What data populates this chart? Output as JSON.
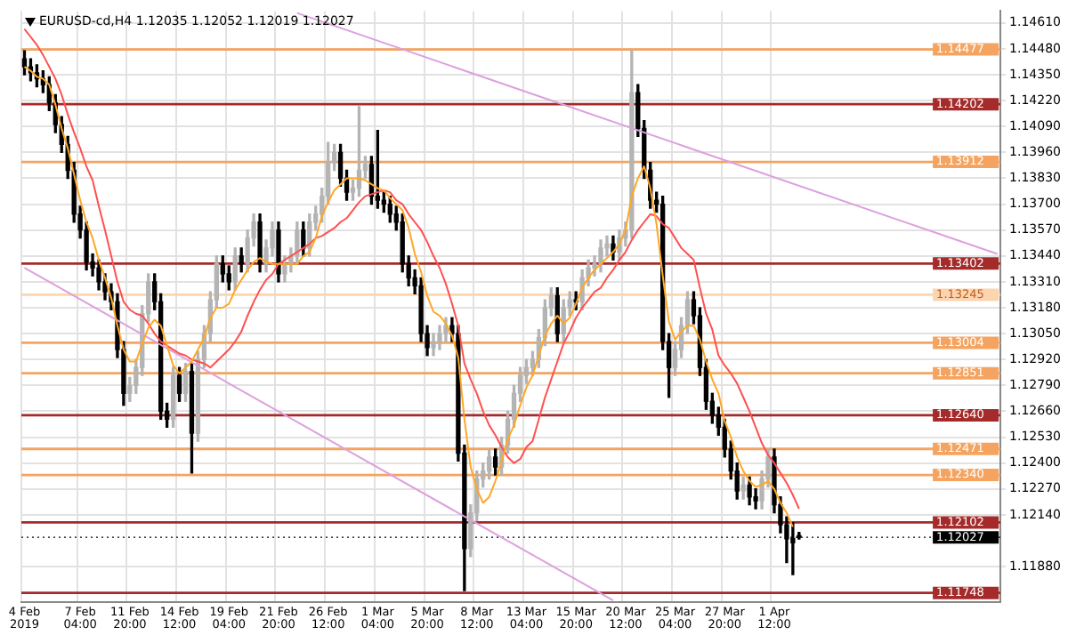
{
  "chart_data": {
    "type": "candlestick",
    "title": "EURUSD-cd,H4 1.12035 1.12052 1.12019 1.12027",
    "categories": [
      "4 Feb 2019",
      null,
      null,
      null,
      null,
      null,
      null,
      null,
      null,
      "7 Feb 04:00",
      null,
      null,
      null,
      null,
      null,
      null,
      null,
      "11 Feb 20:00",
      null,
      null,
      null,
      null,
      null,
      null,
      null,
      "14 Feb 12:00",
      null,
      null,
      null,
      null,
      null,
      null,
      null,
      "19 Feb 04:00",
      null,
      null,
      null,
      null,
      null,
      null,
      null,
      "21 Feb 20:00",
      null,
      null,
      null,
      null,
      null,
      null,
      null,
      "26 Feb 12:00",
      null,
      null,
      null,
      null,
      null,
      null,
      null,
      "1 Mar 04:00",
      null,
      null,
      null,
      null,
      null,
      null,
      null,
      "5 Mar 20:00",
      null,
      null,
      null,
      null,
      null,
      null,
      null,
      "8 Mar 12:00",
      null,
      null,
      null,
      null,
      null,
      null,
      null,
      "13 Mar 04:00",
      null,
      null,
      null,
      null,
      null,
      null,
      null,
      "15 Mar 20:00",
      null,
      null,
      null,
      null,
      null,
      null,
      null,
      "20 Mar 12:00",
      null,
      null,
      null,
      null,
      null,
      null,
      null,
      "25 Mar 04:00",
      null,
      null,
      null,
      null,
      null,
      null,
      null,
      "27 Mar 20:00",
      null,
      null,
      null,
      null,
      null,
      null,
      null,
      "1 Apr 12:00",
      null,
      null,
      null,
      null,
      null,
      null,
      null,
      null,
      null,
      null,
      null,
      null,
      null,
      null,
      null,
      null,
      null,
      null,
      null,
      null,
      null,
      null,
      null,
      null,
      null,
      null,
      null,
      null,
      null,
      null,
      null,
      null,
      null,
      null,
      null,
      null
    ],
    "ohlc": [
      [
        1.1443,
        1.1447,
        1.1435,
        1.1439
      ],
      [
        1.1439,
        1.1443,
        1.1432,
        1.1436
      ],
      [
        1.1436,
        1.144,
        1.1429,
        1.1433
      ],
      [
        1.1433,
        1.1437,
        1.1426,
        1.143
      ],
      [
        1.143,
        1.1434,
        1.1417,
        1.1421
      ],
      [
        1.1421,
        1.1425,
        1.1406,
        1.141
      ],
      [
        1.141,
        1.1414,
        1.1396,
        1.14
      ],
      [
        1.14,
        1.1404,
        1.1383,
        1.1387
      ],
      [
        1.1387,
        1.1391,
        1.1361,
        1.1365
      ],
      [
        1.1365,
        1.1369,
        1.1353,
        1.1357
      ],
      [
        1.1357,
        1.1361,
        1.1337,
        1.1341
      ],
      [
        1.1341,
        1.1345,
        1.1334,
        1.1338
      ],
      [
        1.1338,
        1.1342,
        1.1327,
        1.1331
      ],
      [
        1.1331,
        1.1335,
        1.1322,
        1.1326
      ],
      [
        1.1326,
        1.133,
        1.1317,
        1.1321
      ],
      [
        1.1321,
        1.1325,
        1.1293,
        1.1297
      ],
      [
        1.1297,
        1.1301,
        1.1269,
        1.1275
      ],
      [
        1.1275,
        1.1283,
        1.1271,
        1.1279
      ],
      [
        1.1279,
        1.1292,
        1.1275,
        1.1288
      ],
      [
        1.1288,
        1.1319,
        1.1284,
        1.1315
      ],
      [
        1.1315,
        1.1335,
        1.1311,
        1.1331
      ],
      [
        1.1331,
        1.1335,
        1.1317,
        1.1321
      ],
      [
        1.1321,
        1.1325,
        1.1262,
        1.1266
      ],
      [
        1.1266,
        1.127,
        1.1258,
        1.1262
      ],
      [
        1.1262,
        1.1288,
        1.1258,
        1.1284
      ],
      [
        1.1284,
        1.1288,
        1.1271,
        1.1275
      ],
      [
        1.1275,
        1.129,
        1.1271,
        1.1286
      ],
      [
        1.1286,
        1.129,
        1.1235,
        1.1255
      ],
      [
        1.1255,
        1.1296,
        1.1251,
        1.1292
      ],
      [
        1.1292,
        1.1309,
        1.1288,
        1.1305
      ],
      [
        1.1305,
        1.1326,
        1.1301,
        1.1322
      ],
      [
        1.1322,
        1.1344,
        1.1318,
        1.134
      ],
      [
        1.134,
        1.1344,
        1.1331,
        1.1335
      ],
      [
        1.1335,
        1.1339,
        1.1327,
        1.1331
      ],
      [
        1.1331,
        1.1348,
        1.1327,
        1.1344
      ],
      [
        1.1344,
        1.1348,
        1.1336,
        1.134
      ],
      [
        1.134,
        1.1357,
        1.1336,
        1.1353
      ],
      [
        1.1353,
        1.1365,
        1.1349,
        1.1361
      ],
      [
        1.1361,
        1.1365,
        1.1336,
        1.134
      ],
      [
        1.134,
        1.1352,
        1.1336,
        1.1348
      ],
      [
        1.1348,
        1.1361,
        1.1344,
        1.1357
      ],
      [
        1.1357,
        1.1361,
        1.1331,
        1.1335
      ],
      [
        1.1335,
        1.1344,
        1.1331,
        1.134
      ],
      [
        1.134,
        1.1348,
        1.1336,
        1.1344
      ],
      [
        1.1344,
        1.1361,
        1.134,
        1.1357
      ],
      [
        1.1357,
        1.1361,
        1.1344,
        1.1348
      ],
      [
        1.1348,
        1.1365,
        1.1344,
        1.1361
      ],
      [
        1.1361,
        1.1369,
        1.1357,
        1.1365
      ],
      [
        1.1365,
        1.1378,
        1.1361,
        1.1374
      ],
      [
        1.1374,
        1.1401,
        1.137,
        1.1391
      ],
      [
        1.1391,
        1.14,
        1.1387,
        1.1396
      ],
      [
        1.1396,
        1.14,
        1.1379,
        1.1383
      ],
      [
        1.1383,
        1.1387,
        1.1372,
        1.1376
      ],
      [
        1.1376,
        1.1382,
        1.1372,
        1.1378
      ],
      [
        1.1378,
        1.1419,
        1.1374,
        1.1387
      ],
      [
        1.1387,
        1.1394,
        1.1383,
        1.139
      ],
      [
        1.139,
        1.1394,
        1.137,
        1.1374
      ],
      [
        1.1374,
        1.1407,
        1.1368,
        1.1372
      ],
      [
        1.1372,
        1.1376,
        1.1366,
        1.137
      ],
      [
        1.137,
        1.1374,
        1.1361,
        1.1365
      ],
      [
        1.1365,
        1.1369,
        1.1357,
        1.1361
      ],
      [
        1.1361,
        1.1365,
        1.1336,
        1.134
      ],
      [
        1.134,
        1.1344,
        1.1329,
        1.1333
      ],
      [
        1.1333,
        1.1337,
        1.1325,
        1.1329
      ],
      [
        1.1329,
        1.1333,
        1.1301,
        1.1305
      ],
      [
        1.1305,
        1.1309,
        1.1294,
        1.1298
      ],
      [
        1.1298,
        1.1305,
        1.1294,
        1.1301
      ],
      [
        1.1301,
        1.1309,
        1.1297,
        1.1305
      ],
      [
        1.1305,
        1.1313,
        1.1301,
        1.1309
      ],
      [
        1.1309,
        1.1313,
        1.1301,
        1.1305
      ],
      [
        1.1305,
        1.1309,
        1.1241,
        1.1245
      ],
      [
        1.1245,
        1.1249,
        1.1176,
        1.1197
      ],
      [
        1.1197,
        1.1219,
        1.1193,
        1.1215
      ],
      [
        1.1215,
        1.1236,
        1.1211,
        1.1232
      ],
      [
        1.1232,
        1.124,
        1.1228,
        1.1236
      ],
      [
        1.1236,
        1.1247,
        1.1232,
        1.1243
      ],
      [
        1.1243,
        1.1247,
        1.1234,
        1.1238
      ],
      [
        1.1238,
        1.1253,
        1.1234,
        1.1249
      ],
      [
        1.1249,
        1.1266,
        1.1245,
        1.1262
      ],
      [
        1.1262,
        1.1279,
        1.1258,
        1.1275
      ],
      [
        1.1275,
        1.1288,
        1.1271,
        1.1284
      ],
      [
        1.1284,
        1.1292,
        1.128,
        1.1288
      ],
      [
        1.1288,
        1.1296,
        1.1284,
        1.1292
      ],
      [
        1.1292,
        1.1307,
        1.1288,
        1.1303
      ],
      [
        1.1303,
        1.1322,
        1.1299,
        1.1318
      ],
      [
        1.1318,
        1.1328,
        1.1314,
        1.1324
      ],
      [
        1.1324,
        1.1328,
        1.1301,
        1.1305
      ],
      [
        1.1305,
        1.1322,
        1.1301,
        1.1318
      ],
      [
        1.1318,
        1.1326,
        1.1314,
        1.1322
      ],
      [
        1.1322,
        1.1326,
        1.1317,
        1.1321
      ],
      [
        1.1321,
        1.1337,
        1.1317,
        1.1333
      ],
      [
        1.1333,
        1.1342,
        1.1329,
        1.1338
      ],
      [
        1.1338,
        1.1344,
        1.1334,
        1.134
      ],
      [
        1.134,
        1.1352,
        1.1336,
        1.1348
      ],
      [
        1.1348,
        1.1354,
        1.1344,
        1.135
      ],
      [
        1.135,
        1.1354,
        1.1342,
        1.1346
      ],
      [
        1.1346,
        1.1357,
        1.1342,
        1.1353
      ],
      [
        1.1353,
        1.1361,
        1.1349,
        1.1357
      ],
      [
        1.1357,
        1.1447,
        1.1353,
        1.1426
      ],
      [
        1.1426,
        1.143,
        1.1404,
        1.1408
      ],
      [
        1.1408,
        1.1412,
        1.1383,
        1.1387
      ],
      [
        1.1387,
        1.1391,
        1.1368,
        1.1372
      ],
      [
        1.1372,
        1.1376,
        1.1366,
        1.137
      ],
      [
        1.137,
        1.1374,
        1.1297,
        1.1301
      ],
      [
        1.1301,
        1.1305,
        1.1273,
        1.1288
      ],
      [
        1.1288,
        1.1301,
        1.1284,
        1.1297
      ],
      [
        1.1297,
        1.1313,
        1.1293,
        1.1309
      ],
      [
        1.1309,
        1.1326,
        1.1305,
        1.1322
      ],
      [
        1.1322,
        1.1326,
        1.131,
        1.1314
      ],
      [
        1.1314,
        1.1318,
        1.1284,
        1.1288
      ],
      [
        1.1288,
        1.1292,
        1.1267,
        1.1271
      ],
      [
        1.1271,
        1.1275,
        1.126,
        1.1264
      ],
      [
        1.1264,
        1.1268,
        1.1254,
        1.1258
      ],
      [
        1.1258,
        1.1262,
        1.1243,
        1.1247
      ],
      [
        1.1247,
        1.1251,
        1.1232,
        1.1236
      ],
      [
        1.1236,
        1.124,
        1.1222,
        1.1226
      ],
      [
        1.1226,
        1.1233,
        1.1222,
        1.1229
      ],
      [
        1.1229,
        1.1233,
        1.1219,
        1.1223
      ],
      [
        1.1223,
        1.1227,
        1.1217,
        1.1221
      ],
      [
        1.1221,
        1.1236,
        1.1217,
        1.1232
      ],
      [
        1.1232,
        1.1247,
        1.1228,
        1.1243
      ],
      [
        1.1243,
        1.1247,
        1.1215,
        1.1219
      ],
      [
        1.1219,
        1.1223,
        1.1205,
        1.1209
      ],
      [
        1.1209,
        1.1213,
        1.119,
        1.1202
      ],
      [
        1.1202,
        1.121,
        1.1184,
        1.12
      ],
      [
        1.12035,
        1.12052,
        1.12019,
        1.12027
      ],
      null,
      null,
      null,
      null,
      null,
      null,
      null,
      null,
      null,
      null,
      null,
      null,
      null,
      null,
      null,
      null,
      null,
      null,
      null,
      null,
      null,
      null,
      null,
      null,
      null,
      null,
      null,
      null,
      null,
      null,
      null,
      null
    ],
    "series": [
      {
        "type": "line",
        "color": "#ffa726",
        "values": [
          1.1439,
          1.1437,
          1.1434,
          1.1433,
          1.143,
          1.142,
          1.1408,
          1.1398,
          1.1385,
          1.1372,
          1.1361,
          1.1353,
          1.1342,
          1.1333,
          1.1323,
          1.1309,
          1.1297,
          1.1291,
          1.1291,
          1.13,
          1.1308,
          1.1312,
          1.1309,
          1.1299,
          1.1289,
          1.1285,
          1.1288,
          1.1291,
          1.1297,
          1.1303,
          1.1313,
          1.1318,
          1.1318,
          1.132,
          1.1327,
          1.1332,
          1.1337,
          1.1341,
          1.1343,
          1.1341,
          1.134,
          1.134,
          1.134,
          1.134,
          1.134,
          1.1344,
          1.1346,
          1.1353,
          1.1364,
          1.1371,
          1.1377,
          1.138,
          1.1383,
          1.1383,
          1.1383,
          1.1382,
          1.138,
          1.1378,
          1.1377,
          1.1373,
          1.137,
          1.1367,
          1.1358,
          1.1345,
          1.1336,
          1.1324,
          1.1316,
          1.1314,
          1.131,
          1.1304,
          1.1293,
          1.1262,
          1.1238,
          1.1227,
          1.122,
          1.1223,
          1.1231,
          1.1241,
          1.1252,
          1.1259,
          1.1269,
          1.1278,
          1.1284,
          1.1294,
          1.1304,
          1.131,
          1.1314,
          1.131,
          1.1313,
          1.132,
          1.1328,
          1.1333,
          1.1337,
          1.134,
          1.1343,
          1.1346,
          1.135,
          1.1357,
          1.1374,
          1.1383,
          1.1389,
          1.1378,
          1.136,
          1.1334,
          1.1311,
          1.1302,
          1.1306,
          1.1309,
          1.1309,
          1.1302,
          1.1291,
          1.1282,
          1.1275,
          1.1261,
          1.1253,
          1.1243,
          1.1236,
          1.1231,
          1.1228,
          1.1229,
          1.1231,
          1.1227,
          1.122,
          1.1215,
          1.1208,
          null,
          null,
          null,
          null,
          null,
          null,
          null,
          null,
          null,
          null,
          null,
          null,
          null,
          null,
          null,
          null,
          null,
          null,
          null,
          null,
          null,
          null,
          null,
          null,
          null,
          null,
          null,
          null,
          null,
          null,
          null,
          null,
          null
        ]
      },
      {
        "type": "line",
        "color": "#ff5050",
        "values": [
          1.1458,
          1.1454,
          1.145,
          1.1445,
          1.1439,
          1.1433,
          1.1425,
          1.1415,
          1.1406,
          1.1398,
          1.1389,
          1.1382,
          1.1369,
          1.1357,
          1.1344,
          1.1331,
          1.1321,
          1.1317,
          1.1315,
          1.1314,
          1.131,
          1.1305,
          1.1301,
          1.1299,
          1.1297,
          1.1295,
          1.1294,
          1.1292,
          1.1291,
          1.129,
          1.1288,
          1.1291,
          1.1294,
          1.1297,
          1.1301,
          1.1306,
          1.1314,
          1.1321,
          1.1327,
          1.1332,
          1.1335,
          1.134,
          1.1342,
          1.1344,
          1.1346,
          1.1348,
          1.135,
          1.1353,
          1.1354,
          1.1356,
          1.1358,
          1.1361,
          1.1363,
          1.1367,
          1.1371,
          1.1374,
          1.1375,
          1.1376,
          1.1377,
          1.1376,
          1.1372,
          1.137,
          1.1365,
          1.1361,
          1.1357,
          1.1351,
          1.1344,
          1.1338,
          1.133,
          1.132,
          1.1309,
          1.129,
          1.1282,
          1.1275,
          1.1266,
          1.1259,
          1.1254,
          1.1248,
          1.1243,
          1.124,
          1.1242,
          1.1248,
          1.1251,
          1.1262,
          1.1273,
          1.1282,
          1.1291,
          1.13,
          1.1306,
          1.1313,
          1.1318,
          1.1322,
          1.1326,
          1.1328,
          1.1333,
          1.1337,
          1.1342,
          1.1346,
          1.1352,
          1.1357,
          1.1361,
          1.1365,
          1.1364,
          1.136,
          1.1358,
          1.1353,
          1.1348,
          1.1345,
          1.1342,
          1.1328,
          1.1315,
          1.1307,
          1.1294,
          1.1289,
          1.1285,
          1.128,
          1.1273,
          1.1266,
          1.1258,
          1.125,
          1.1244,
          1.124,
          1.1235,
          1.123,
          1.1224,
          1.1217,
          null,
          null,
          null,
          null,
          null,
          null,
          null,
          null,
          null,
          null,
          null,
          null,
          null,
          null,
          null,
          null,
          null,
          null,
          null,
          null,
          null,
          null,
          null,
          null,
          null,
          null,
          null,
          null,
          null,
          null,
          null,
          null
        ]
      },
      {
        "type": "line",
        "color": "#dda0dd",
        "values": [
          null,
          null,
          null,
          null,
          null,
          null,
          null,
          null,
          null,
          null,
          null,
          null,
          null,
          null,
          null,
          null,
          null,
          null,
          null,
          null,
          null,
          null,
          null,
          null,
          null,
          null,
          null,
          null,
          null,
          null,
          null,
          null,
          null,
          null,
          null,
          null,
          null,
          null,
          null,
          null,
          null,
          null,
          null,
          null,
          1.1466,
          null,
          null,
          null,
          null,
          null,
          null,
          null,
          null,
          null,
          null,
          null,
          null,
          null,
          null,
          null,
          null,
          null,
          null,
          null,
          null,
          null,
          null,
          null,
          null,
          null,
          null,
          null,
          null,
          null,
          null,
          null,
          null,
          null,
          null,
          null,
          null,
          null,
          null,
          null,
          null,
          null,
          null,
          null,
          null,
          null,
          null,
          null,
          null,
          null,
          null,
          null,
          null,
          null,
          null,
          null,
          null,
          null,
          null,
          null,
          null,
          null,
          null,
          null,
          null,
          null,
          null,
          null,
          null,
          null,
          null,
          null,
          null,
          null,
          null,
          null,
          null,
          null,
          null,
          null,
          null,
          null,
          null,
          null,
          null,
          null,
          null,
          null,
          null,
          null,
          null,
          null,
          null,
          null,
          null,
          null,
          null,
          null,
          null,
          null,
          null,
          null,
          null,
          null,
          null,
          null,
          null,
          null,
          null,
          null,
          null,
          null,
          null,
          1.1345
        ]
      },
      {
        "type": "line",
        "color": "#dda0dd",
        "values": [
          1.1338,
          null,
          null,
          null,
          null,
          null,
          null,
          null,
          null,
          null,
          null,
          null,
          null,
          null,
          null,
          null,
          null,
          null,
          null,
          null,
          null,
          null,
          null,
          null,
          null,
          null,
          null,
          null,
          null,
          null,
          null,
          null,
          null,
          null,
          null,
          null,
          null,
          null,
          null,
          null,
          null,
          null,
          null,
          null,
          null,
          null,
          null,
          null,
          null,
          null,
          null,
          null,
          null,
          null,
          null,
          null,
          null,
          null,
          null,
          null,
          null,
          null,
          null,
          null,
          null,
          null,
          null,
          null,
          null,
          null,
          null,
          null,
          null,
          null,
          null,
          null,
          null,
          null,
          null,
          null,
          null,
          null,
          null,
          null,
          null,
          null,
          null,
          null,
          null,
          null,
          null,
          null,
          null,
          null,
          null,
          1.1171,
          null,
          null,
          null,
          null,
          null,
          null,
          null,
          null,
          null,
          null,
          null,
          null,
          null,
          null,
          null,
          null,
          null,
          null,
          null,
          null,
          null,
          null,
          null,
          null,
          null,
          null,
          null,
          null,
          null,
          null,
          null,
          null,
          null,
          null,
          null,
          null,
          null,
          null,
          null,
          null,
          null,
          null,
          null,
          null,
          null,
          null,
          null,
          null,
          null,
          null,
          null,
          null,
          null,
          null,
          null,
          null,
          null,
          null,
          null,
          null,
          null,
          null
        ]
      }
    ],
    "ylim": [
      1.117,
      1.1467
    ],
    "yticks": [
      {
        "value": 1.1188,
        "label": "1.11880"
      },
      {
        "value": 1.1214,
        "label": "1.12140"
      },
      {
        "value": 1.1227,
        "label": "1.12270"
      },
      {
        "value": 1.124,
        "label": "1.12400"
      },
      {
        "value": 1.1253,
        "label": "1.12530"
      },
      {
        "value": 1.1266,
        "label": "1.12660"
      },
      {
        "value": 1.1279,
        "label": "1.12790"
      },
      {
        "value": 1.1292,
        "label": "1.12920"
      },
      {
        "value": 1.1305,
        "label": "1.13050"
      },
      {
        "value": 1.1318,
        "label": "1.13180"
      },
      {
        "value": 1.1331,
        "label": "1.13310"
      },
      {
        "value": 1.1344,
        "label": "1.13440"
      },
      {
        "value": 1.1357,
        "label": "1.13570"
      },
      {
        "value": 1.137,
        "label": "1.13700"
      },
      {
        "value": 1.1383,
        "label": "1.13830"
      },
      {
        "value": 1.1396,
        "label": "1.13960"
      },
      {
        "value": 1.1409,
        "label": "1.14090"
      },
      {
        "value": 1.1422,
        "label": "1.14220"
      },
      {
        "value": 1.1435,
        "label": "1.14350"
      },
      {
        "value": 1.1448,
        "label": "1.14480"
      },
      {
        "value": 1.1461,
        "label": "1.14610"
      }
    ],
    "grid": true,
    "ref_lines": [
      {
        "axis": "y",
        "value": 1.14477,
        "label": "1.14477",
        "color": "#f4a460"
      },
      {
        "axis": "y",
        "value": 1.14202,
        "label": "1.14202",
        "color": "#a52a2a"
      },
      {
        "axis": "y",
        "value": 1.13912,
        "label": "1.13912",
        "color": "#f4a460"
      },
      {
        "axis": "y",
        "value": 1.13402,
        "label": "1.13402",
        "color": "#a52a2a"
      },
      {
        "axis": "y",
        "value": 1.13245,
        "label": "1.13245",
        "color": "#fbd5b0"
      },
      {
        "axis": "y",
        "value": 1.13004,
        "label": "1.13004",
        "color": "#f4a460"
      },
      {
        "axis": "y",
        "value": 1.12851,
        "label": "1.12851",
        "color": "#f4a460"
      },
      {
        "axis": "y",
        "value": 1.1264,
        "label": "1.12640",
        "color": "#a52a2a"
      },
      {
        "axis": "y",
        "value": 1.12471,
        "label": "1.12471",
        "color": "#f4a460"
      },
      {
        "axis": "y",
        "value": 1.1234,
        "label": "1.12340",
        "color": "#f4a460"
      },
      {
        "axis": "y",
        "value": 1.12102,
        "label": "1.12102",
        "color": "#a52a2a"
      },
      {
        "axis": "y",
        "value": 1.12027,
        "label": "1.12027",
        "color": "#000000",
        "line_style": "dotted"
      },
      {
        "axis": "y",
        "value": 1.11748,
        "label": "1.11748",
        "color": "#a52a2a"
      }
    ]
  }
}
